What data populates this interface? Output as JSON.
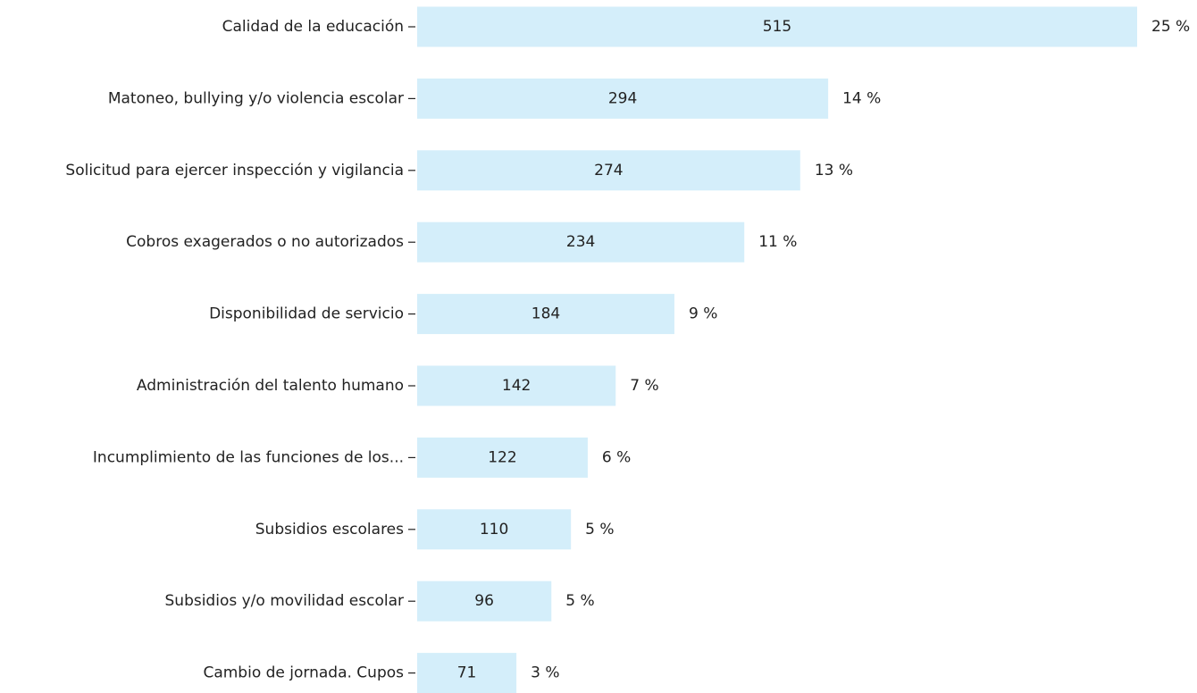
{
  "chart_data": {
    "type": "bar",
    "orientation": "horizontal",
    "categories": [
      "Calidad de la educación",
      "Matoneo, bullying y/o violencia escolar",
      "Solicitud para ejercer inspección y vigilancia",
      "Cobros exagerados o no autorizados",
      "Disponibilidad de servicio",
      "Administración del talento humano",
      "Incumplimiento de las funciones de los...",
      "Subsidios escolares",
      "Subsidios y/o movilidad escolar",
      "Cambio de jornada. Cupos"
    ],
    "values": [
      515,
      294,
      274,
      234,
      184,
      142,
      122,
      110,
      96,
      71
    ],
    "shares": [
      25,
      14,
      13,
      11,
      9,
      7,
      6,
      5,
      5,
      3
    ],
    "share_labels": [
      "25 %",
      "14 %",
      "13 %",
      "11 %",
      "9 %",
      "7 %",
      "6 %",
      "5 %",
      "5 %",
      "3 %"
    ],
    "color": "#d4eefa"
  }
}
